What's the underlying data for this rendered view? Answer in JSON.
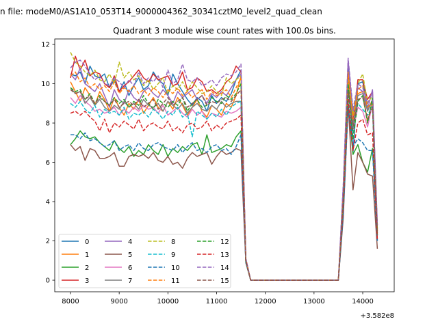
{
  "chart_data": {
    "type": "line",
    "suptitle": "n file: modeM0/AS1A10_053T14_9000004362_30341cztM0_level2_quad_clean",
    "title": "Quadrant 3 module wise count rates with 100.0s bins.",
    "xlabel": "",
    "ylabel": "",
    "x_offset_label": "+3.582e8",
    "xlim": [
      7677,
      14646
    ],
    "ylim": [
      -0.59,
      12.28
    ],
    "xticks": [
      8000,
      9000,
      10000,
      11000,
      12000,
      13000,
      14000
    ],
    "yticks": [
      0,
      2,
      4,
      6,
      8,
      10,
      12
    ],
    "grid": false,
    "legend": {
      "placement": "lower-left",
      "columns": 4
    },
    "x": [
      8000,
      8100,
      8200,
      8300,
      8400,
      8500,
      8600,
      8700,
      8800,
      8900,
      9000,
      9100,
      9200,
      9300,
      9400,
      9500,
      9600,
      9700,
      9800,
      9900,
      10000,
      10100,
      10200,
      10300,
      10400,
      10500,
      10600,
      10700,
      10800,
      10900,
      11000,
      11100,
      11200,
      11300,
      11400,
      11500,
      11600,
      11700,
      11800,
      11900,
      12000,
      12100,
      12200,
      12300,
      12400,
      12500,
      12600,
      12700,
      12800,
      12900,
      13000,
      13100,
      13200,
      13300,
      13400,
      13500,
      13600,
      13700,
      13800,
      13900,
      14000,
      14100,
      14200,
      14300
    ],
    "series": [
      {
        "name": "0",
        "color": "#1f77b4",
        "dashed": false,
        "values": [
          10.5,
          10.4,
          10.6,
          10.0,
          10.9,
          10.4,
          10.3,
          10.5,
          9.8,
          10.2,
          9.6,
          10.1,
          9.4,
          9.9,
          10.3,
          9.7,
          9.9,
          10.6,
          10.2,
          10.0,
          9.4,
          10.5,
          10.0,
          9.6,
          9.2,
          8.9,
          9.3,
          9.1,
          8.6,
          9.4,
          9.0,
          9.3,
          9.1,
          9.5,
          10.2,
          10.7,
          1.0,
          0,
          0,
          0,
          0,
          0,
          0,
          0,
          0,
          0,
          0,
          0,
          0,
          0,
          0,
          0,
          0,
          0,
          0,
          0,
          4.0,
          10.8,
          6.5,
          10.0,
          10.1,
          8.8,
          9.0,
          2.0
        ]
      },
      {
        "name": "1",
        "color": "#ff7f0e",
        "dashed": false,
        "values": [
          10.1,
          9.6,
          9.1,
          9.8,
          9.4,
          8.9,
          9.6,
          9.2,
          8.6,
          9.3,
          8.8,
          8.4,
          9.0,
          8.7,
          9.2,
          8.5,
          8.9,
          9.3,
          8.8,
          8.6,
          9.1,
          8.7,
          9.3,
          8.9,
          8.4,
          8.8,
          9.2,
          8.6,
          8.3,
          8.9,
          8.7,
          8.4,
          9.0,
          8.8,
          9.4,
          10.4,
          1.0,
          0,
          0,
          0,
          0,
          0,
          0,
          0,
          0,
          0,
          0,
          0,
          0,
          0,
          0,
          0,
          0,
          0,
          0,
          0,
          4.2,
          10.0,
          7.8,
          9.5,
          9.6,
          8.0,
          9.2,
          2.5
        ]
      },
      {
        "name": "2",
        "color": "#2ca02c",
        "dashed": false,
        "values": [
          6.9,
          7.2,
          7.6,
          7.3,
          7.2,
          7.3,
          7.0,
          6.8,
          6.6,
          7.1,
          6.7,
          6.5,
          6.8,
          6.3,
          6.6,
          6.4,
          6.9,
          6.6,
          6.4,
          6.9,
          6.3,
          6.7,
          6.5,
          6.8,
          6.6,
          6.9,
          7.0,
          6.4,
          7.4,
          6.5,
          6.6,
          6.7,
          6.9,
          6.8,
          7.3,
          7.6,
          0.9,
          0,
          0,
          0,
          0,
          0,
          0,
          0,
          0,
          0,
          0,
          0,
          0,
          0,
          0,
          0,
          0,
          0,
          0,
          0,
          3.5,
          9.0,
          6.4,
          6.9,
          6.0,
          5.5,
          6.7,
          2.3
        ]
      },
      {
        "name": "3",
        "color": "#d62728",
        "dashed": false,
        "values": [
          10.3,
          11.4,
          10.7,
          11.2,
          10.4,
          10.6,
          10.5,
          10.0,
          9.8,
          10.4,
          9.6,
          9.9,
          10.1,
          10.4,
          10.7,
          10.3,
          10.1,
          10.5,
          10.2,
          10.3,
          10.4,
          9.9,
          10.0,
          10.6,
          9.7,
          9.8,
          10.3,
          10.1,
          9.6,
          9.7,
          9.5,
          9.7,
          10.1,
          10.3,
          10.9,
          10.6,
          1.1,
          0,
          0,
          0,
          0,
          0,
          0,
          0,
          0,
          0,
          0,
          0,
          0,
          0,
          0,
          0,
          0,
          0,
          0,
          0,
          4.5,
          10.5,
          8.0,
          10.2,
          10.2,
          9.2,
          9.6,
          2.6
        ]
      },
      {
        "name": "4",
        "color": "#9467bd",
        "dashed": false,
        "values": [
          10.5,
          10.2,
          10.8,
          10.0,
          9.8,
          9.6,
          10.0,
          9.4,
          8.8,
          9.7,
          9.2,
          9.0,
          9.7,
          9.3,
          9.1,
          9.6,
          9.8,
          9.5,
          9.3,
          9.7,
          9.4,
          9.0,
          9.6,
          9.3,
          9.5,
          9.7,
          9.2,
          9.4,
          9.0,
          9.5,
          9.3,
          9.6,
          9.4,
          9.8,
          10.2,
          10.5,
          1.0,
          0,
          0,
          0,
          0,
          0,
          0,
          0,
          0,
          0,
          0,
          0,
          0,
          0,
          0,
          0,
          0,
          0,
          0,
          0,
          4.8,
          11.2,
          8.5,
          9.8,
          9.6,
          8.7,
          9.7,
          2.8
        ]
      },
      {
        "name": "5",
        "color": "#8c564b",
        "dashed": false,
        "values": [
          6.9,
          6.6,
          6.8,
          6.1,
          6.7,
          6.6,
          6.2,
          6.2,
          6.3,
          6.5,
          5.8,
          5.8,
          6.3,
          6.4,
          6.3,
          6.4,
          6.2,
          6.5,
          6.1,
          6.0,
          6.3,
          5.9,
          6.0,
          5.7,
          6.2,
          6.5,
          6.3,
          6.4,
          6.5,
          5.9,
          6.3,
          6.6,
          6.4,
          6.5,
          6.7,
          6.6,
          0.9,
          0,
          0,
          0,
          0,
          0,
          0,
          0,
          0,
          0,
          0,
          0,
          0,
          0,
          0,
          0,
          0,
          0,
          0,
          0,
          3.2,
          9.0,
          4.6,
          6.5,
          6.0,
          5.4,
          5.3,
          1.6
        ]
      },
      {
        "name": "6",
        "color": "#e377c2",
        "dashed": false,
        "values": [
          9.3,
          9.0,
          9.4,
          9.1,
          8.9,
          8.6,
          8.7,
          8.5,
          8.6,
          8.8,
          8.4,
          8.7,
          8.5,
          8.8,
          8.6,
          8.9,
          8.7,
          8.8,
          8.5,
          8.9,
          8.4,
          8.6,
          8.8,
          8.5,
          8.3,
          8.7,
          8.4,
          8.6,
          8.2,
          8.5,
          8.4,
          8.3,
          8.6,
          8.5,
          8.6,
          8.8,
          1.0,
          0,
          0,
          0,
          0,
          0,
          0,
          0,
          0,
          0,
          0,
          0,
          0,
          0,
          0,
          0,
          0,
          0,
          0,
          0,
          4.0,
          9.8,
          7.6,
          8.8,
          8.6,
          7.8,
          9.0,
          2.4
        ]
      },
      {
        "name": "7",
        "color": "#7f7f7f",
        "dashed": false,
        "values": [
          9.8,
          9.5,
          9.6,
          9.0,
          9.3,
          8.9,
          9.2,
          8.8,
          8.6,
          8.9,
          8.7,
          9.1,
          8.8,
          9.0,
          8.7,
          9.2,
          8.9,
          8.8,
          9.0,
          8.6,
          9.1,
          8.9,
          8.7,
          9.0,
          8.5,
          8.8,
          9.0,
          8.7,
          8.6,
          8.9,
          8.7,
          9.1,
          8.8,
          9.0,
          9.1,
          9.1,
          1.0,
          0,
          0,
          0,
          0,
          0,
          0,
          0,
          0,
          0,
          0,
          0,
          0,
          0,
          0,
          0,
          0,
          0,
          0,
          0,
          4.1,
          9.9,
          7.9,
          9.4,
          9.5,
          8.6,
          9.2,
          2.4
        ]
      },
      {
        "name": "8",
        "color": "#bcbd22",
        "dashed": true,
        "values": [
          11.6,
          11.1,
          10.9,
          10.6,
          10.4,
          10.7,
          10.2,
          10.1,
          10.5,
          10.0,
          11.1,
          10.3,
          10.6,
          10.2,
          10.4,
          9.9,
          10.2,
          9.7,
          10.0,
          10.3,
          9.5,
          9.9,
          9.7,
          10.1,
          9.6,
          10.1,
          9.8,
          9.5,
          9.6,
          9.9,
          9.6,
          9.4,
          10.3,
          10.0,
          10.2,
          10.4,
          1.0,
          0,
          0,
          0,
          0,
          0,
          0,
          0,
          0,
          0,
          0,
          0,
          0,
          0,
          0,
          0,
          0,
          0,
          0,
          0,
          4.6,
          10.3,
          8.4,
          10.0,
          10.5,
          9.0,
          9.4,
          2.6
        ]
      },
      {
        "name": "9",
        "color": "#17becf",
        "dashed": true,
        "values": [
          9.0,
          8.8,
          9.1,
          8.7,
          8.5,
          8.9,
          8.3,
          8.7,
          8.5,
          8.6,
          8.4,
          8.8,
          8.2,
          8.5,
          8.4,
          8.6,
          8.3,
          8.7,
          8.5,
          8.2,
          8.6,
          8.4,
          8.8,
          8.3,
          8.5,
          7.3,
          8.6,
          8.4,
          8.2,
          8.5,
          8.3,
          8.7,
          8.4,
          8.8,
          9.0,
          9.1,
          1.0,
          0,
          0,
          0,
          0,
          0,
          0,
          0,
          0,
          0,
          0,
          0,
          0,
          0,
          0,
          0,
          0,
          0,
          0,
          0,
          3.9,
          9.5,
          7.5,
          9.0,
          8.7,
          8.4,
          8.9,
          2.2
        ]
      },
      {
        "name": "10",
        "color": "#1f77b4",
        "dashed": true,
        "values": [
          7.4,
          7.4,
          7.2,
          7.5,
          7.1,
          7.2,
          7.0,
          6.8,
          6.9,
          7.1,
          6.6,
          6.8,
          6.9,
          6.6,
          7.0,
          6.7,
          6.6,
          6.9,
          7.0,
          6.8,
          6.7,
          6.6,
          6.9,
          6.5,
          6.8,
          7.0,
          6.6,
          6.7,
          6.5,
          6.8,
          6.9,
          6.6,
          6.7,
          6.4,
          6.8,
          7.4,
          0.9,
          0,
          0,
          0,
          0,
          0,
          0,
          0,
          0,
          0,
          0,
          0,
          0,
          0,
          0,
          0,
          0,
          0,
          0,
          0,
          3.4,
          8.8,
          6.8,
          7.2,
          7.0,
          6.6,
          6.6,
          2.0
        ]
      },
      {
        "name": "11",
        "color": "#ff7f0e",
        "dashed": true,
        "values": [
          10.4,
          10.6,
          10.1,
          10.3,
          9.8,
          10.0,
          9.7,
          9.9,
          9.6,
          10.1,
          9.5,
          9.8,
          9.6,
          9.9,
          9.5,
          9.7,
          9.4,
          9.8,
          9.6,
          9.3,
          9.7,
          9.5,
          9.8,
          9.4,
          9.6,
          9.3,
          9.5,
          9.7,
          9.2,
          9.6,
          9.4,
          9.5,
          9.7,
          9.3,
          9.8,
          10.3,
          1.0,
          0,
          0,
          0,
          0,
          0,
          0,
          0,
          0,
          0,
          0,
          0,
          0,
          0,
          0,
          0,
          0,
          0,
          0,
          0,
          4.3,
          10.6,
          8.2,
          9.7,
          9.9,
          8.8,
          9.1,
          2.5
        ]
      },
      {
        "name": "12",
        "color": "#2ca02c",
        "dashed": true,
        "values": [
          9.8,
          9.6,
          9.7,
          9.2,
          9.5,
          9.0,
          9.4,
          9.1,
          8.9,
          9.3,
          9.0,
          9.2,
          8.8,
          9.1,
          8.9,
          9.4,
          9.0,
          8.7,
          9.2,
          9.0,
          8.8,
          9.1,
          8.9,
          9.3,
          8.6,
          9.0,
          9.2,
          8.8,
          8.9,
          9.3,
          9.1,
          9.0,
          9.4,
          9.2,
          9.5,
          10.0,
          1.0,
          0,
          0,
          0,
          0,
          0,
          0,
          0,
          0,
          0,
          0,
          0,
          0,
          0,
          0,
          0,
          0,
          0,
          0,
          0,
          4.2,
          10.0,
          7.2,
          9.1,
          9.4,
          8.0,
          9.3,
          2.3
        ]
      },
      {
        "name": "13",
        "color": "#d62728",
        "dashed": true,
        "values": [
          8.5,
          8.6,
          8.4,
          8.6,
          8.3,
          8.1,
          7.6,
          8.2,
          7.5,
          8.0,
          7.8,
          8.1,
          7.9,
          7.7,
          8.2,
          7.6,
          7.9,
          8.0,
          7.8,
          7.7,
          8.1,
          7.6,
          7.8,
          7.5,
          7.9,
          8.0,
          7.7,
          7.8,
          8.1,
          7.6,
          7.9,
          7.7,
          8.0,
          8.1,
          8.2,
          8.4,
          1.0,
          0,
          0,
          0,
          0,
          0,
          0,
          0,
          0,
          0,
          0,
          0,
          0,
          0,
          0,
          0,
          0,
          0,
          0,
          0,
          3.8,
          9.2,
          6.6,
          8.0,
          8.2,
          7.4,
          7.5,
          2.1
        ]
      },
      {
        "name": "14",
        "color": "#9467bd",
        "dashed": true,
        "values": [
          10.8,
          11.1,
          11.2,
          10.9,
          10.5,
          10.2,
          10.4,
          10.0,
          9.9,
          10.3,
          10.1,
          9.8,
          10.2,
          9.9,
          10.6,
          10.0,
          10.3,
          10.1,
          10.4,
          9.8,
          10.7,
          10.0,
          10.2,
          11.0,
          10.2,
          10.1,
          10.3,
          9.9,
          10.0,
          10.2,
          9.9,
          10.3,
          10.5,
          10.4,
          10.6,
          11.0,
          1.1,
          0,
          0,
          0,
          0,
          0,
          0,
          0,
          0,
          0,
          0,
          0,
          0,
          0,
          0,
          0,
          0,
          0,
          0,
          0,
          4.9,
          11.3,
          8.7,
          10.0,
          9.8,
          9.0,
          9.6,
          2.8
        ]
      },
      {
        "name": "15",
        "color": "#8c564b",
        "dashed": true,
        "values": [
          9.7,
          9.5,
          9.6,
          9.2,
          9.4,
          9.0,
          9.3,
          9.1,
          8.9,
          9.2,
          8.8,
          9.0,
          9.1,
          8.9,
          9.2,
          8.8,
          9.0,
          9.2,
          8.7,
          9.0,
          9.3,
          8.9,
          9.1,
          9.3,
          8.8,
          9.0,
          9.2,
          9.4,
          8.9,
          9.1,
          9.0,
          9.2,
          9.3,
          9.1,
          9.4,
          9.7,
          1.0,
          0,
          0,
          0,
          0,
          0,
          0,
          0,
          0,
          0,
          0,
          0,
          0,
          0,
          0,
          0,
          0,
          0,
          0,
          0,
          4.1,
          9.6,
          7.7,
          9.2,
          9.3,
          8.2,
          8.8,
          2.3
        ]
      }
    ]
  }
}
